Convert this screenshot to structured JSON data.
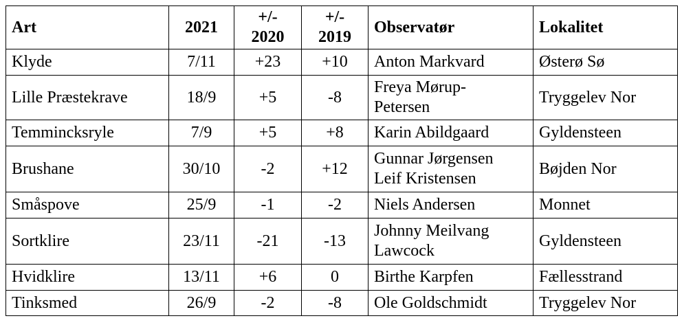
{
  "table": {
    "header": [
      "Art",
      "2021",
      [
        "+/-",
        "2020"
      ],
      [
        "+/-",
        "2019"
      ],
      "Observatør",
      "Lokalitet"
    ],
    "rows": [
      [
        "Klyde",
        "7/11",
        "+23",
        "+10",
        "Anton Markvard",
        "Østerø Sø"
      ],
      [
        "Lille Præstekrave",
        "18/9",
        "+5",
        "-8",
        [
          "Freya Mørup-",
          "Petersen"
        ],
        "Tryggelev Nor"
      ],
      [
        "Temmincksryle",
        "7/9",
        "+5",
        "+8",
        "Karin Abildgaard",
        "Gyldensteen"
      ],
      [
        "Brushane",
        "30/10",
        "-2",
        "+12",
        [
          "Gunnar Jørgensen",
          "Leif Kristensen"
        ],
        "Bøjden Nor"
      ],
      [
        "Småspove",
        "25/9",
        "-1",
        "-2",
        "Niels Andersen",
        "Monnet"
      ],
      [
        "Sortklire",
        "23/11",
        "-21",
        "-13",
        [
          "Johnny Meilvang",
          "Lawcock"
        ],
        "Gyldensteen"
      ],
      [
        "Hvidklire",
        "13/11",
        "+6",
        "0",
        "Birthe Karpfen",
        "Fællesstrand"
      ],
      [
        "Tinksmed",
        "26/9",
        "-2",
        "-8",
        "Ole Goldschmidt",
        "Tryggelev Nor"
      ]
    ]
  }
}
